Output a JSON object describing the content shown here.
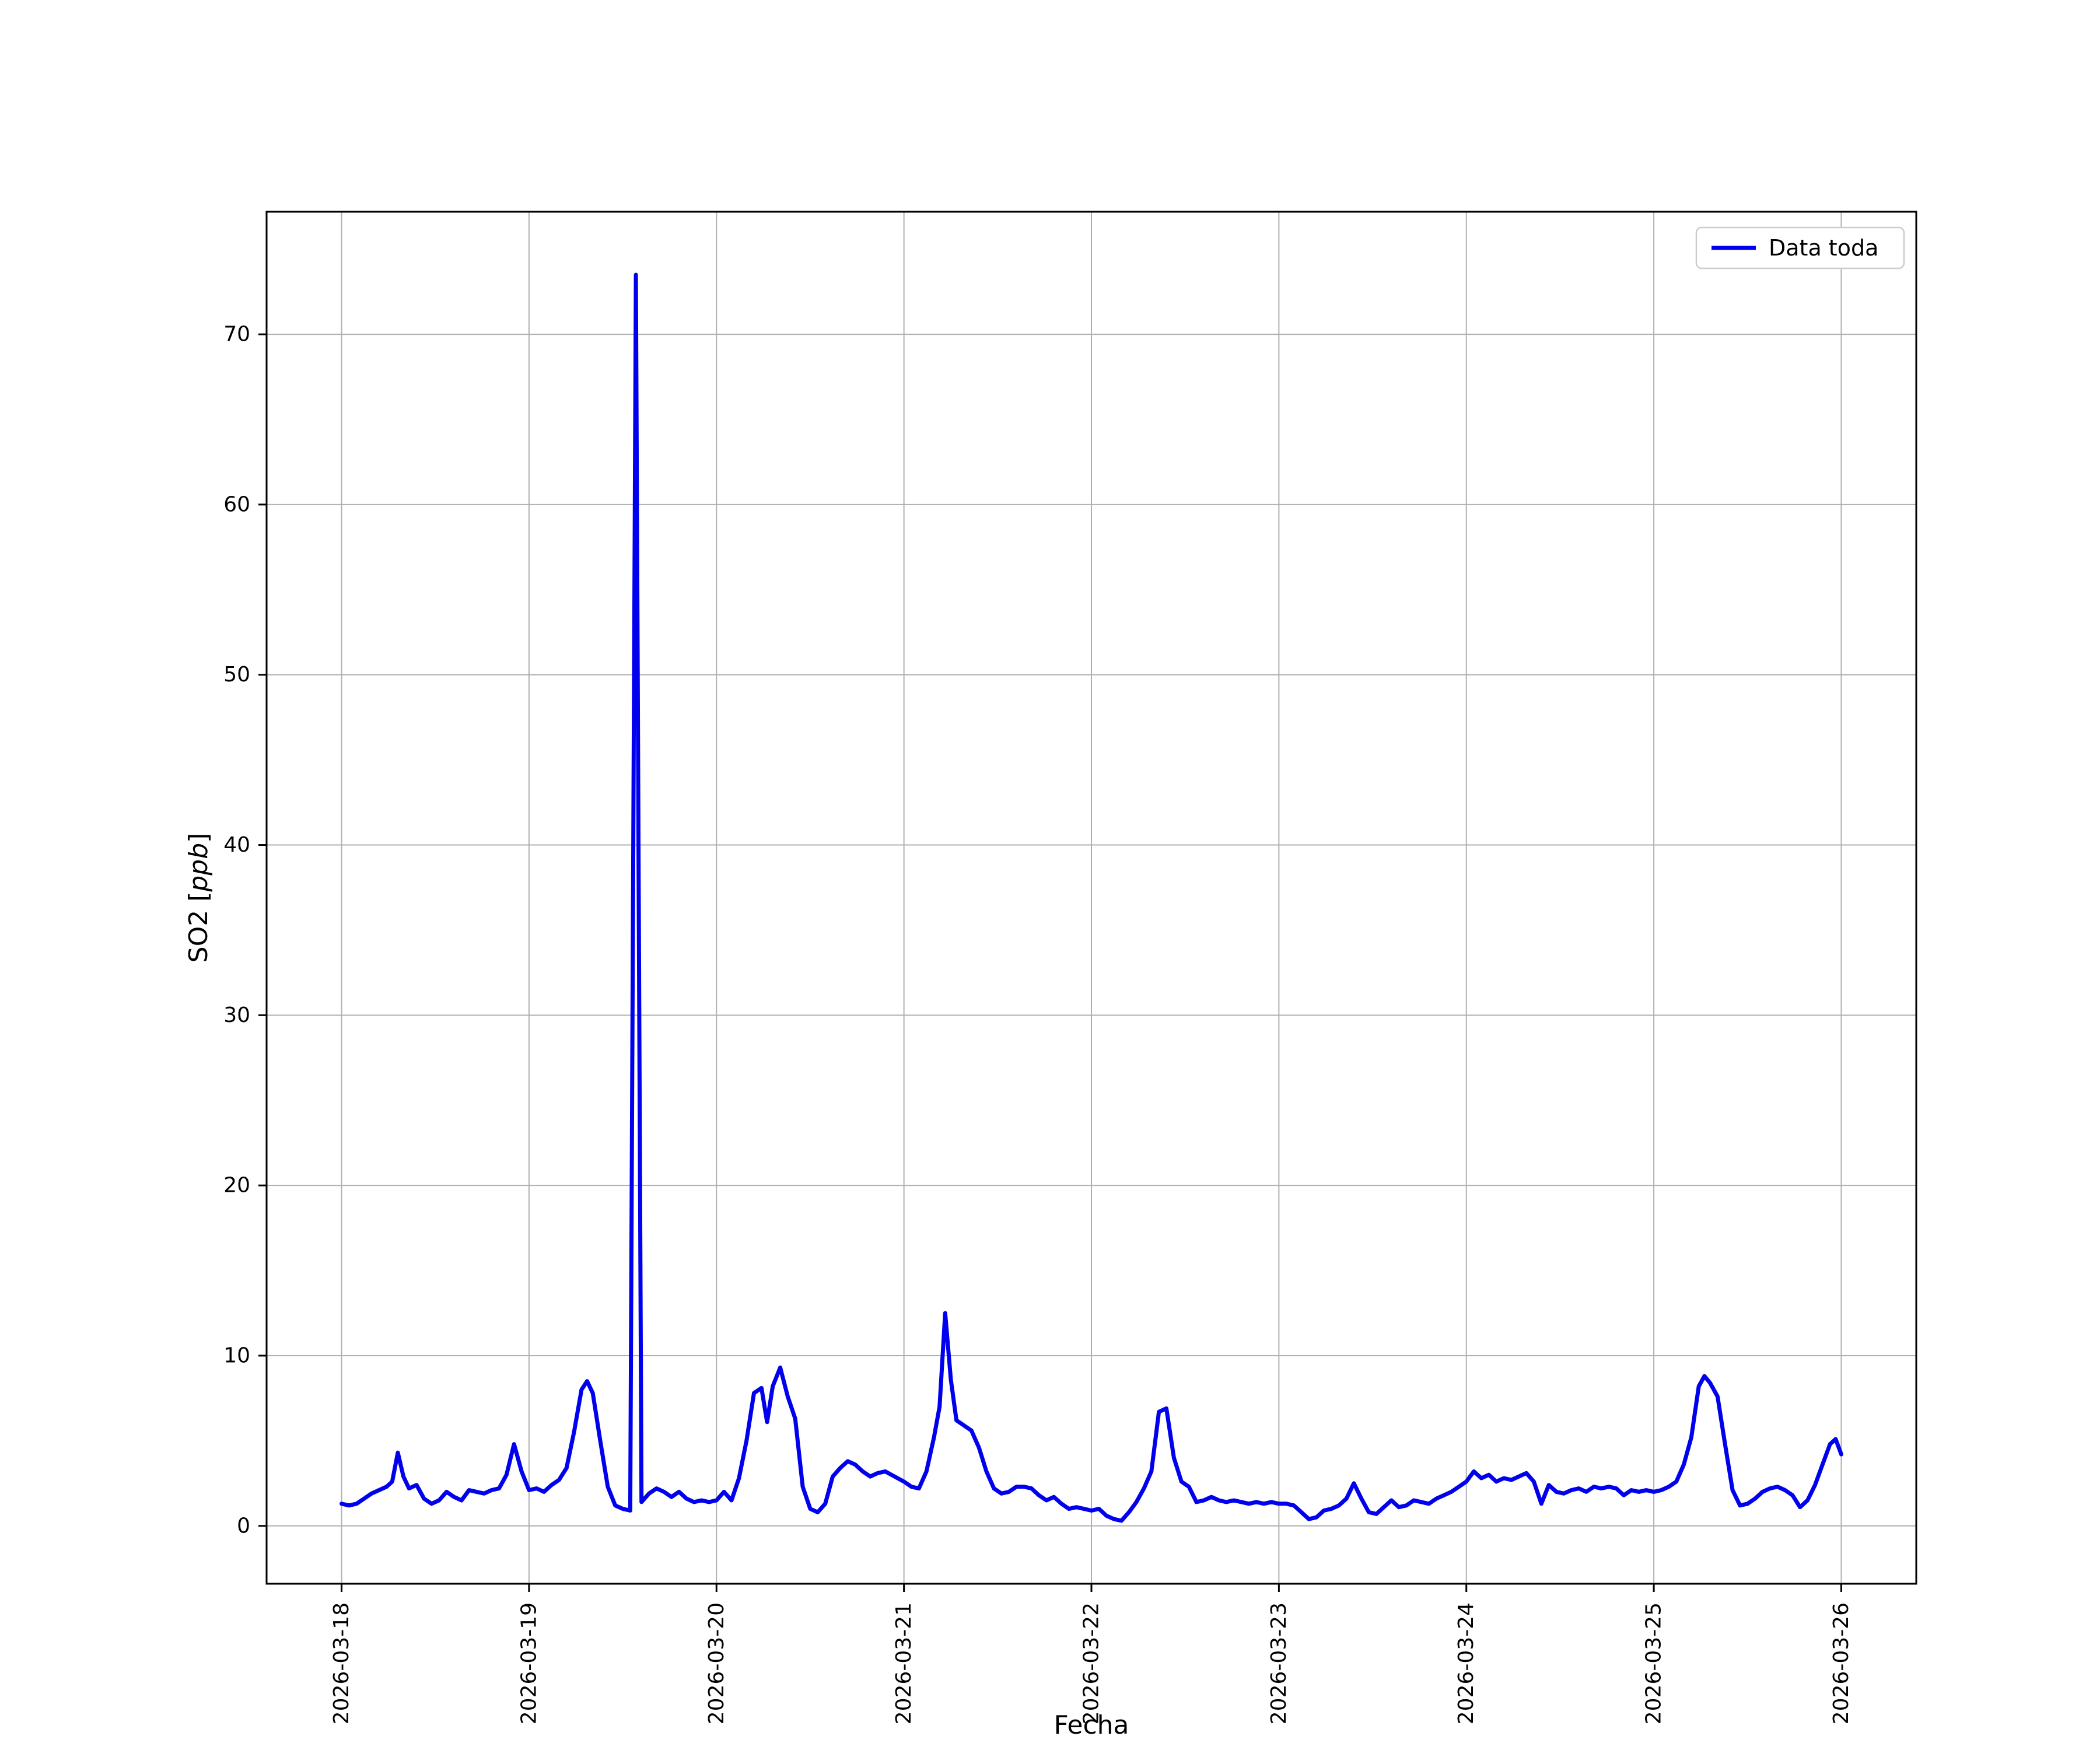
{
  "figure": {
    "background": "#ffffff"
  },
  "chart_data": {
    "type": "line",
    "title": "",
    "xlabel": "Fecha",
    "ylabel_prefix": "SO2 [",
    "ylabel_italic": "ppb",
    "ylabel_suffix": "]",
    "grid": true,
    "line_color": "#0000ee",
    "legend": {
      "position": "upper right",
      "entries": [
        {
          "label": "Data toda",
          "color": "#0000ee"
        }
      ]
    },
    "xlim": [
      -0.4,
      8.4
    ],
    "ylim": [
      -3.4,
      77.2
    ],
    "x_tick_values": [
      0,
      1,
      2,
      3,
      4,
      5,
      6,
      7,
      8
    ],
    "x_tick_labels": [
      "2026-03-18",
      "2026-03-19",
      "2026-03-20",
      "2026-03-21",
      "2026-03-22",
      "2026-03-23",
      "2026-03-24",
      "2026-03-25",
      "2026-03-26"
    ],
    "y_ticks": [
      0,
      10,
      20,
      30,
      40,
      50,
      60,
      70
    ],
    "series": [
      {
        "name": "Data toda",
        "points": [
          [
            0.0,
            1.3
          ],
          [
            0.04,
            1.2
          ],
          [
            0.08,
            1.3
          ],
          [
            0.12,
            1.6
          ],
          [
            0.16,
            1.9
          ],
          [
            0.2,
            2.1
          ],
          [
            0.24,
            2.3
          ],
          [
            0.27,
            2.6
          ],
          [
            0.3,
            4.3
          ],
          [
            0.33,
            2.9
          ],
          [
            0.36,
            2.2
          ],
          [
            0.4,
            2.4
          ],
          [
            0.44,
            1.6
          ],
          [
            0.48,
            1.3
          ],
          [
            0.52,
            1.5
          ],
          [
            0.56,
            2.0
          ],
          [
            0.6,
            1.7
          ],
          [
            0.64,
            1.5
          ],
          [
            0.68,
            2.1
          ],
          [
            0.72,
            2.0
          ],
          [
            0.76,
            1.9
          ],
          [
            0.8,
            2.1
          ],
          [
            0.84,
            2.2
          ],
          [
            0.88,
            3.0
          ],
          [
            0.92,
            4.8
          ],
          [
            0.96,
            3.2
          ],
          [
            1.0,
            2.1
          ],
          [
            1.04,
            2.2
          ],
          [
            1.08,
            2.0
          ],
          [
            1.12,
            2.4
          ],
          [
            1.16,
            2.7
          ],
          [
            1.2,
            3.4
          ],
          [
            1.24,
            5.5
          ],
          [
            1.28,
            8.0
          ],
          [
            1.31,
            8.5
          ],
          [
            1.34,
            7.8
          ],
          [
            1.38,
            5.0
          ],
          [
            1.42,
            2.3
          ],
          [
            1.46,
            1.2
          ],
          [
            1.5,
            1.0
          ],
          [
            1.54,
            0.9
          ],
          [
            1.57,
            73.5
          ],
          [
            1.6,
            1.4
          ],
          [
            1.64,
            1.9
          ],
          [
            1.68,
            2.2
          ],
          [
            1.72,
            2.0
          ],
          [
            1.76,
            1.7
          ],
          [
            1.8,
            2.0
          ],
          [
            1.84,
            1.6
          ],
          [
            1.88,
            1.4
          ],
          [
            1.92,
            1.5
          ],
          [
            1.96,
            1.4
          ],
          [
            2.0,
            1.5
          ],
          [
            2.04,
            2.0
          ],
          [
            2.08,
            1.5
          ],
          [
            2.12,
            2.8
          ],
          [
            2.16,
            5.0
          ],
          [
            2.2,
            7.8
          ],
          [
            2.24,
            8.1
          ],
          [
            2.27,
            6.1
          ],
          [
            2.3,
            8.2
          ],
          [
            2.34,
            9.3
          ],
          [
            2.38,
            7.6
          ],
          [
            2.42,
            6.3
          ],
          [
            2.46,
            2.3
          ],
          [
            2.5,
            1.0
          ],
          [
            2.54,
            0.8
          ],
          [
            2.58,
            1.3
          ],
          [
            2.62,
            2.9
          ],
          [
            2.66,
            3.4
          ],
          [
            2.7,
            3.8
          ],
          [
            2.74,
            3.6
          ],
          [
            2.78,
            3.2
          ],
          [
            2.82,
            2.9
          ],
          [
            2.86,
            3.1
          ],
          [
            2.9,
            3.2
          ],
          [
            2.95,
            2.9
          ],
          [
            3.0,
            2.6
          ],
          [
            3.04,
            2.3
          ],
          [
            3.08,
            2.2
          ],
          [
            3.12,
            3.2
          ],
          [
            3.16,
            5.2
          ],
          [
            3.19,
            7.0
          ],
          [
            3.22,
            12.5
          ],
          [
            3.25,
            8.6
          ],
          [
            3.28,
            6.2
          ],
          [
            3.32,
            5.9
          ],
          [
            3.36,
            5.6
          ],
          [
            3.4,
            4.6
          ],
          [
            3.44,
            3.2
          ],
          [
            3.48,
            2.2
          ],
          [
            3.52,
            1.9
          ],
          [
            3.56,
            2.0
          ],
          [
            3.6,
            2.3
          ],
          [
            3.64,
            2.3
          ],
          [
            3.68,
            2.2
          ],
          [
            3.72,
            1.8
          ],
          [
            3.76,
            1.5
          ],
          [
            3.8,
            1.7
          ],
          [
            3.84,
            1.3
          ],
          [
            3.88,
            1.0
          ],
          [
            3.92,
            1.1
          ],
          [
            3.96,
            1.0
          ],
          [
            4.0,
            0.9
          ],
          [
            4.04,
            1.0
          ],
          [
            4.08,
            0.6
          ],
          [
            4.12,
            0.4
          ],
          [
            4.16,
            0.3
          ],
          [
            4.2,
            0.8
          ],
          [
            4.24,
            1.4
          ],
          [
            4.28,
            2.2
          ],
          [
            4.32,
            3.2
          ],
          [
            4.36,
            6.7
          ],
          [
            4.4,
            6.9
          ],
          [
            4.44,
            4.0
          ],
          [
            4.48,
            2.6
          ],
          [
            4.52,
            2.3
          ],
          [
            4.56,
            1.4
          ],
          [
            4.6,
            1.5
          ],
          [
            4.64,
            1.7
          ],
          [
            4.68,
            1.5
          ],
          [
            4.72,
            1.4
          ],
          [
            4.76,
            1.5
          ],
          [
            4.8,
            1.4
          ],
          [
            4.84,
            1.3
          ],
          [
            4.88,
            1.4
          ],
          [
            4.92,
            1.3
          ],
          [
            4.96,
            1.4
          ],
          [
            5.0,
            1.3
          ],
          [
            5.04,
            1.3
          ],
          [
            5.08,
            1.2
          ],
          [
            5.12,
            0.8
          ],
          [
            5.16,
            0.4
          ],
          [
            5.2,
            0.5
          ],
          [
            5.24,
            0.9
          ],
          [
            5.28,
            1.0
          ],
          [
            5.32,
            1.2
          ],
          [
            5.36,
            1.6
          ],
          [
            5.4,
            2.5
          ],
          [
            5.44,
            1.6
          ],
          [
            5.48,
            0.8
          ],
          [
            5.52,
            0.7
          ],
          [
            5.56,
            1.1
          ],
          [
            5.6,
            1.5
          ],
          [
            5.64,
            1.1
          ],
          [
            5.68,
            1.2
          ],
          [
            5.72,
            1.5
          ],
          [
            5.76,
            1.4
          ],
          [
            5.8,
            1.3
          ],
          [
            5.84,
            1.6
          ],
          [
            5.88,
            1.8
          ],
          [
            5.92,
            2.0
          ],
          [
            5.96,
            2.3
          ],
          [
            6.0,
            2.6
          ],
          [
            6.04,
            3.2
          ],
          [
            6.08,
            2.8
          ],
          [
            6.12,
            3.0
          ],
          [
            6.16,
            2.6
          ],
          [
            6.2,
            2.8
          ],
          [
            6.24,
            2.7
          ],
          [
            6.28,
            2.9
          ],
          [
            6.32,
            3.1
          ],
          [
            6.36,
            2.6
          ],
          [
            6.4,
            1.3
          ],
          [
            6.44,
            2.4
          ],
          [
            6.48,
            2.0
          ],
          [
            6.52,
            1.9
          ],
          [
            6.56,
            2.1
          ],
          [
            6.6,
            2.2
          ],
          [
            6.64,
            2.0
          ],
          [
            6.68,
            2.3
          ],
          [
            6.72,
            2.2
          ],
          [
            6.76,
            2.3
          ],
          [
            6.8,
            2.2
          ],
          [
            6.84,
            1.8
          ],
          [
            6.88,
            2.1
          ],
          [
            6.92,
            2.0
          ],
          [
            6.96,
            2.1
          ],
          [
            7.0,
            2.0
          ],
          [
            7.04,
            2.1
          ],
          [
            7.08,
            2.3
          ],
          [
            7.12,
            2.6
          ],
          [
            7.16,
            3.6
          ],
          [
            7.2,
            5.2
          ],
          [
            7.24,
            8.2
          ],
          [
            7.27,
            8.8
          ],
          [
            7.3,
            8.4
          ],
          [
            7.34,
            7.6
          ],
          [
            7.38,
            4.8
          ],
          [
            7.42,
            2.1
          ],
          [
            7.46,
            1.2
          ],
          [
            7.5,
            1.3
          ],
          [
            7.54,
            1.6
          ],
          [
            7.58,
            2.0
          ],
          [
            7.62,
            2.2
          ],
          [
            7.66,
            2.3
          ],
          [
            7.7,
            2.1
          ],
          [
            7.74,
            1.8
          ],
          [
            7.78,
            1.1
          ],
          [
            7.82,
            1.5
          ],
          [
            7.86,
            2.4
          ],
          [
            7.9,
            3.6
          ],
          [
            7.94,
            4.8
          ],
          [
            7.97,
            5.1
          ],
          [
            8.0,
            4.2
          ]
        ]
      }
    ]
  }
}
